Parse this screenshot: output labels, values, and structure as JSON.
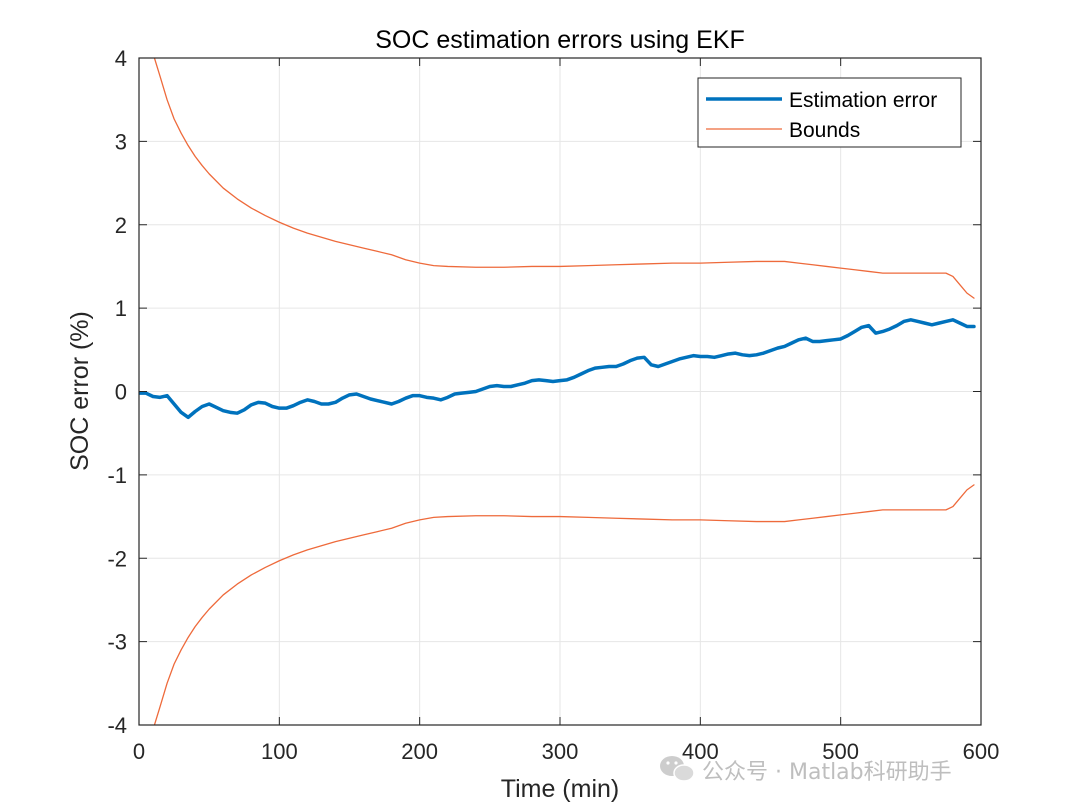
{
  "chart_data": {
    "type": "line",
    "title": "SOC estimation errors using EKF",
    "xlabel": "Time (min)",
    "ylabel": "SOC error (%)",
    "xlim": [
      0,
      600
    ],
    "ylim": [
      -4,
      4
    ],
    "xticks": [
      0,
      100,
      200,
      300,
      400,
      500,
      600
    ],
    "xtick_labels": [
      "0",
      "100",
      "200",
      "300",
      "400",
      "500",
      "600"
    ],
    "yticks": [
      -4,
      -3,
      -2,
      -1,
      0,
      1,
      2,
      3,
      4
    ],
    "ytick_labels": [
      "-4",
      "-3",
      "-2",
      "-1",
      "0",
      "1",
      "2",
      "3",
      "4"
    ],
    "grid": true,
    "legend_position": "top-right",
    "series": [
      {
        "name": "Estimation error",
        "color": "#0072BD",
        "style": "thick",
        "x": [
          0,
          5,
          10,
          15,
          20,
          25,
          30,
          35,
          40,
          45,
          50,
          55,
          60,
          65,
          70,
          75,
          80,
          85,
          90,
          95,
          100,
          105,
          110,
          115,
          120,
          125,
          130,
          135,
          140,
          145,
          150,
          155,
          160,
          165,
          170,
          175,
          180,
          185,
          190,
          195,
          200,
          205,
          210,
          215,
          220,
          225,
          230,
          235,
          240,
          245,
          250,
          255,
          260,
          265,
          270,
          275,
          280,
          285,
          290,
          295,
          300,
          305,
          310,
          315,
          320,
          325,
          330,
          335,
          340,
          345,
          350,
          355,
          360,
          365,
          370,
          375,
          380,
          385,
          390,
          395,
          400,
          405,
          410,
          415,
          420,
          425,
          430,
          435,
          440,
          445,
          450,
          455,
          460,
          465,
          470,
          475,
          480,
          485,
          490,
          495,
          500,
          505,
          510,
          515,
          520,
          525,
          530,
          535,
          540,
          545,
          550,
          555,
          560,
          565,
          570,
          575,
          580,
          585,
          590,
          595
        ],
        "values": [
          -0.02,
          -0.02,
          -0.06,
          -0.07,
          -0.05,
          -0.15,
          -0.25,
          -0.31,
          -0.24,
          -0.18,
          -0.15,
          -0.19,
          -0.23,
          -0.25,
          -0.26,
          -0.22,
          -0.16,
          -0.13,
          -0.14,
          -0.18,
          -0.2,
          -0.2,
          -0.17,
          -0.13,
          -0.1,
          -0.12,
          -0.15,
          -0.15,
          -0.13,
          -0.08,
          -0.04,
          -0.03,
          -0.06,
          -0.09,
          -0.11,
          -0.13,
          -0.15,
          -0.12,
          -0.08,
          -0.05,
          -0.05,
          -0.07,
          -0.08,
          -0.1,
          -0.07,
          -0.03,
          -0.02,
          -0.01,
          0.0,
          0.03,
          0.06,
          0.07,
          0.06,
          0.06,
          0.08,
          0.1,
          0.13,
          0.14,
          0.13,
          0.12,
          0.13,
          0.14,
          0.17,
          0.21,
          0.25,
          0.28,
          0.29,
          0.3,
          0.3,
          0.33,
          0.37,
          0.4,
          0.41,
          0.32,
          0.3,
          0.33,
          0.36,
          0.39,
          0.41,
          0.43,
          0.42,
          0.42,
          0.41,
          0.43,
          0.45,
          0.46,
          0.44,
          0.43,
          0.44,
          0.46,
          0.49,
          0.52,
          0.54,
          0.58,
          0.62,
          0.64,
          0.6,
          0.6,
          0.61,
          0.62,
          0.63,
          0.67,
          0.72,
          0.77,
          0.79,
          0.7,
          0.72,
          0.75,
          0.79,
          0.84,
          0.86,
          0.84,
          0.82,
          0.8,
          0.82,
          0.84,
          0.86,
          0.82,
          0.78,
          0.78
        ]
      },
      {
        "name": "Bounds",
        "color": "#EE6A3B",
        "style": "thin",
        "x": [
          11,
          15,
          20,
          25,
          30,
          35,
          40,
          45,
          50,
          60,
          70,
          80,
          90,
          100,
          110,
          120,
          130,
          140,
          150,
          160,
          170,
          180,
          190,
          200,
          210,
          220,
          240,
          260,
          280,
          300,
          320,
          340,
          360,
          380,
          400,
          420,
          440,
          460,
          470,
          480,
          490,
          500,
          510,
          520,
          530,
          540,
          560,
          575,
          580,
          585,
          590,
          595
        ],
        "values": [
          4.0,
          3.78,
          3.5,
          3.27,
          3.1,
          2.95,
          2.82,
          2.71,
          2.61,
          2.44,
          2.31,
          2.2,
          2.11,
          2.03,
          1.96,
          1.9,
          1.85,
          1.8,
          1.76,
          1.72,
          1.68,
          1.64,
          1.58,
          1.54,
          1.51,
          1.5,
          1.49,
          1.49,
          1.5,
          1.5,
          1.51,
          1.52,
          1.53,
          1.54,
          1.54,
          1.55,
          1.56,
          1.56,
          1.54,
          1.52,
          1.5,
          1.48,
          1.46,
          1.44,
          1.42,
          1.42,
          1.42,
          1.42,
          1.38,
          1.28,
          1.18,
          1.12
        ]
      },
      {
        "name": "",
        "color": "#EE6A3B",
        "style": "thin",
        "x": [
          11,
          15,
          20,
          25,
          30,
          35,
          40,
          45,
          50,
          60,
          70,
          80,
          90,
          100,
          110,
          120,
          130,
          140,
          150,
          160,
          170,
          180,
          190,
          200,
          210,
          220,
          240,
          260,
          280,
          300,
          320,
          340,
          360,
          380,
          400,
          420,
          440,
          460,
          470,
          480,
          490,
          500,
          510,
          520,
          530,
          540,
          560,
          575,
          580,
          585,
          590,
          595
        ],
        "values": [
          -4.0,
          -3.78,
          -3.5,
          -3.27,
          -3.1,
          -2.95,
          -2.82,
          -2.71,
          -2.61,
          -2.44,
          -2.31,
          -2.2,
          -2.11,
          -2.03,
          -1.96,
          -1.9,
          -1.85,
          -1.8,
          -1.76,
          -1.72,
          -1.68,
          -1.64,
          -1.58,
          -1.54,
          -1.51,
          -1.5,
          -1.49,
          -1.49,
          -1.5,
          -1.5,
          -1.51,
          -1.52,
          -1.53,
          -1.54,
          -1.54,
          -1.55,
          -1.56,
          -1.56,
          -1.54,
          -1.52,
          -1.5,
          -1.48,
          -1.46,
          -1.44,
          -1.42,
          -1.42,
          -1.42,
          -1.42,
          -1.38,
          -1.28,
          -1.18,
          -1.12
        ]
      }
    ],
    "legend": [
      {
        "label": "Estimation error",
        "color": "#0072BD",
        "style": "thick"
      },
      {
        "label": "Bounds",
        "color": "#EE6A3B",
        "style": "thin"
      }
    ]
  },
  "watermark": {
    "text": "公众号 · Matlab科研助手",
    "icon": "wechat-icon"
  }
}
